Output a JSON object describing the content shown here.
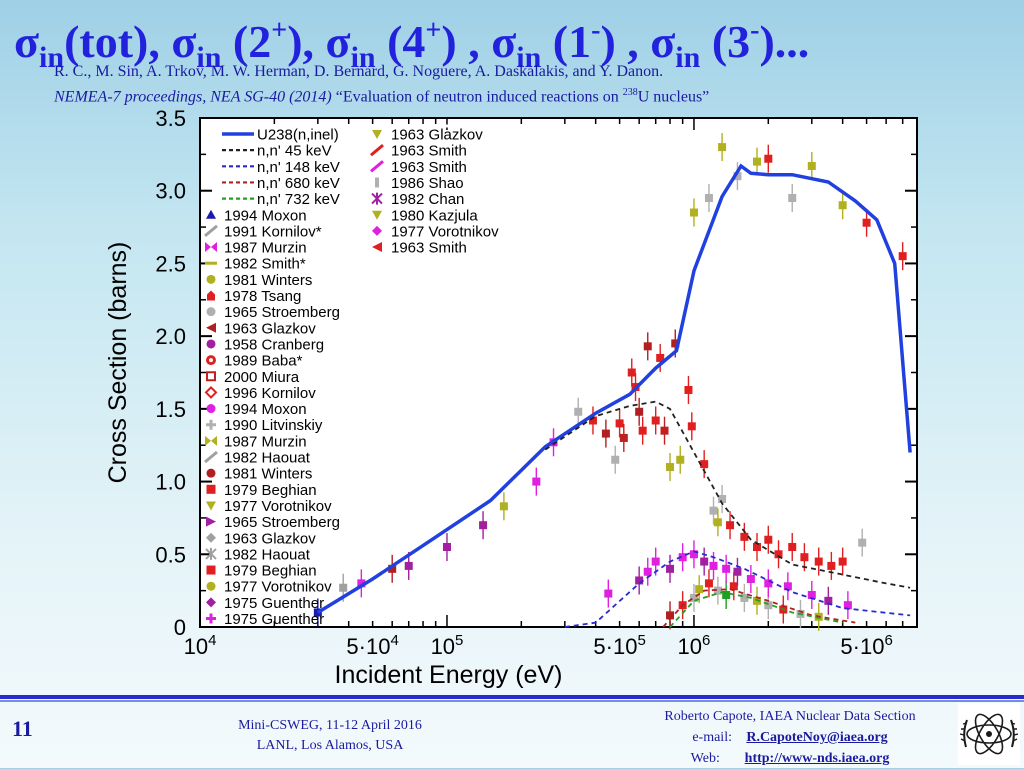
{
  "title": {
    "parts": [
      {
        "sym": "σ",
        "sub": "in",
        "text": "(tot), "
      },
      {
        "sym": "σ",
        "sub": "in",
        "text": " (2",
        "sup": "+",
        "tail": "), "
      },
      {
        "sym": "σ",
        "sub": "in",
        "text": " (4",
        "sup": "+",
        "tail": ") , "
      },
      {
        "sym": "σ",
        "sub": "in",
        "text": " (1",
        "sup": "-",
        "tail": ") , "
      },
      {
        "sym": "σ",
        "sub": "in",
        "text": " (3",
        "sup": "-",
        "tail": ")..."
      }
    ]
  },
  "reference": {
    "authors": "R. C., M. Sin, A. Trkov, M. W. Herman, D. Bernard, G. Noguere, A. Daskalakis, and Y. Danon.",
    "venue": "NEMEA-7 proceedings, NEA SG-40 (2014)",
    "paper_title_pre": " “Evaluation of neutron induced reactions on ",
    "paper_title_sup": "238",
    "paper_title_post": "U nucleus”"
  },
  "footer": {
    "slide_number": "11",
    "event_line1": "Mini-CSWEG, 11-12 April 2016",
    "event_line2": "LANL, Los Alamos, USA",
    "contact_name": "Roberto Capote, IAEA Nuclear Data Section",
    "email_label": "e-mail:",
    "email": "R.CapoteNoy@iaea.org",
    "web_label": "Web:",
    "web": "http://www-nds.iaea.org"
  },
  "chart_data": {
    "type": "line",
    "xscale": "log",
    "xlim": [
      10000,
      8000000
    ],
    "ylim": [
      0,
      3.5
    ],
    "xlabel": "Incident Energy (eV)",
    "ylabel": "Cross Section (barns)",
    "x_ticks": [
      {
        "value": 10000,
        "base": "10",
        "exp": "4",
        "mult": ""
      },
      {
        "value": 50000,
        "base": "10",
        "exp": "4",
        "mult": "5·"
      },
      {
        "value": 100000,
        "base": "10",
        "exp": "5",
        "mult": ""
      },
      {
        "value": 500000,
        "base": "10",
        "exp": "5",
        "mult": "5·"
      },
      {
        "value": 1000000,
        "base": "10",
        "exp": "6",
        "mult": ""
      },
      {
        "value": 5000000,
        "base": "10",
        "exp": "6",
        "mult": "5·"
      }
    ],
    "y_ticks": [
      "0",
      "0.5",
      "1.0",
      "1.5",
      "2.0",
      "2.5",
      "3.0",
      "3.5"
    ],
    "legend_position": "top-left",
    "curves": [
      {
        "name": "U238(n,inel)",
        "color": "#2040e0",
        "style": "solid",
        "x": [
          30000,
          50000,
          80000,
          150000,
          250000,
          400000,
          550000,
          700000,
          850000,
          1000000,
          1300000,
          1550000,
          1700000,
          2000000,
          2500000,
          3500000,
          4500000,
          5500000,
          6500000,
          7500000
        ],
        "y": [
          0.1,
          0.33,
          0.56,
          0.87,
          1.24,
          1.47,
          1.6,
          1.78,
          1.9,
          2.45,
          2.96,
          3.17,
          3.12,
          3.11,
          3.11,
          3.06,
          2.93,
          2.8,
          2.5,
          1.2
        ]
      },
      {
        "name": "n,n'  45 keV",
        "color": "#222222",
        "style": "dashed",
        "x": [
          250000,
          400000,
          550000,
          700000,
          800000,
          1000000,
          1300000,
          1700000,
          2500000,
          4000000,
          6000000,
          7500000
        ],
        "y": [
          1.22,
          1.45,
          1.52,
          1.55,
          1.5,
          1.2,
          0.85,
          0.6,
          0.43,
          0.36,
          0.3,
          0.27
        ]
      },
      {
        "name": "n,n' 148 keV",
        "color": "#2a2ad0",
        "style": "dashed",
        "x": [
          300000,
          400000,
          600000,
          800000,
          1000000,
          1200000,
          1600000,
          2500000,
          4000000,
          7500000
        ],
        "y": [
          0.0,
          0.03,
          0.3,
          0.45,
          0.52,
          0.48,
          0.4,
          0.24,
          0.13,
          0.08
        ]
      },
      {
        "name": "n,n' 680 keV",
        "color": "#b02020",
        "style": "dashed",
        "x": [
          750000,
          900000,
          1100000,
          1400000,
          2000000,
          3000000,
          4500000
        ],
        "y": [
          0.0,
          0.15,
          0.25,
          0.26,
          0.18,
          0.08,
          0.03
        ]
      },
      {
        "name": "n,n' 732 keV",
        "color": "#20a020",
        "style": "dashed",
        "x": [
          800000,
          1000000,
          1300000,
          1700000,
          2500000,
          4000000
        ],
        "y": [
          0.0,
          0.18,
          0.24,
          0.2,
          0.1,
          0.03
        ]
      }
    ],
    "legend_col1": [
      {
        "label": "U238(n,inel)",
        "color": "#2040e0",
        "kind": "solid"
      },
      {
        "label": "n,n'  45 keV",
        "color": "#222222",
        "kind": "dashed"
      },
      {
        "label": "n,n' 148 keV",
        "color": "#2a2ad0",
        "kind": "dashed"
      },
      {
        "label": "n,n' 680 keV",
        "color": "#b02020",
        "kind": "dashed"
      },
      {
        "label": "n,n' 732 keV",
        "color": "#20a020",
        "kind": "dashed"
      },
      {
        "label": "1994 Moxon",
        "color": "#1a1ab0",
        "kind": "triangle"
      },
      {
        "label": "1991 Kornilov*",
        "color": "#a0a0a0",
        "kind": "slash"
      },
      {
        "label": "1987 Murzin",
        "color": "#e020e0",
        "kind": "bowtie"
      },
      {
        "label": "1982 Smith*",
        "color": "#b0b020",
        "kind": "dash"
      },
      {
        "label": "1981 Winters",
        "color": "#b0b020",
        "kind": "circle"
      },
      {
        "label": "1978 Tsang",
        "color": "#e02020",
        "kind": "house"
      },
      {
        "label": "1965 Stroemberg",
        "color": "#b0b0b0",
        "kind": "circle"
      },
      {
        "label": "1963 Glazkov",
        "color": "#b02020",
        "kind": "tri-left"
      },
      {
        "label": "1958 Cranberg",
        "color": "#a020a0",
        "kind": "circle"
      },
      {
        "label": "1989 Baba*",
        "color": "#e02020",
        "kind": "burst"
      },
      {
        "label": "2000 Miura",
        "color": "#c02020",
        "kind": "square-open"
      },
      {
        "label": "1996 Kornilov",
        "color": "#e02020",
        "kind": "diamond-open"
      },
      {
        "label": "1994 Moxon",
        "color": "#e020e0",
        "kind": "circle"
      },
      {
        "label": "1990 Litvinskiy",
        "color": "#b0b0b0",
        "kind": "plus"
      },
      {
        "label": "1987 Murzin",
        "color": "#b0b020",
        "kind": "bowtie"
      },
      {
        "label": "1982 Haouat",
        "color": "#a0a0a0",
        "kind": "slash"
      },
      {
        "label": "1981 Winters",
        "color": "#b02020",
        "kind": "circle"
      },
      {
        "label": "1979 Beghian",
        "color": "#e02020",
        "kind": "square"
      },
      {
        "label": "1977 Vorotnikov",
        "color": "#b0b020",
        "kind": "tri-down"
      },
      {
        "label": "1965 Stroemberg",
        "color": "#a020a0",
        "kind": "tri-right"
      },
      {
        "label": "1963 Glazkov",
        "color": "#a0a0a0",
        "kind": "diamond"
      },
      {
        "label": "1982 Haouat",
        "color": "#a0a0a0",
        "kind": "star"
      },
      {
        "label": "1979 Beghian",
        "color": "#e02020",
        "kind": "square"
      },
      {
        "label": "1977 Vorotnikov",
        "color": "#b0b020",
        "kind": "circle"
      },
      {
        "label": "1975 Guenther",
        "color": "#a020a0",
        "kind": "diamond"
      },
      {
        "label": "1975 Guenther",
        "color": "#e020e0",
        "kind": "plus"
      }
    ],
    "legend_col2": [
      {
        "label": "1963 Glazkov",
        "color": "#b0b020",
        "kind": "tri-down"
      },
      {
        "label": "1963 Smith",
        "color": "#e02020",
        "kind": "slash"
      },
      {
        "label": "1963 Smith",
        "color": "#e020e0",
        "kind": "slash"
      },
      {
        "label": "1986 Shao",
        "color": "#b0b0b0",
        "kind": "bar"
      },
      {
        "label": "1982 Chan",
        "color": "#a020a0",
        "kind": "star"
      },
      {
        "label": "1980 Kazjula",
        "color": "#b0b020",
        "kind": "tri-down"
      },
      {
        "label": "1977 Vorotnikov",
        "color": "#e020e0",
        "kind": "diamond"
      },
      {
        "label": "1963 Smith",
        "color": "#e02020",
        "kind": "tri-left"
      }
    ],
    "points_total": [
      {
        "x": 30000,
        "y": 0.1,
        "c": "#1a1ab0"
      },
      {
        "x": 38000,
        "y": 0.27,
        "c": "#a0a0a0"
      },
      {
        "x": 45000,
        "y": 0.3,
        "c": "#e020e0"
      },
      {
        "x": 60000,
        "y": 0.4,
        "c": "#b02020"
      },
      {
        "x": 70000,
        "y": 0.42,
        "c": "#a020a0"
      },
      {
        "x": 100000,
        "y": 0.55,
        "c": "#a020a0"
      },
      {
        "x": 140000,
        "y": 0.7,
        "c": "#a020a0"
      },
      {
        "x": 170000,
        "y": 0.83,
        "c": "#b0b020"
      },
      {
        "x": 230000,
        "y": 1.0,
        "c": "#e020e0"
      },
      {
        "x": 270000,
        "y": 1.27,
        "c": "#e020e0"
      },
      {
        "x": 340000,
        "y": 1.48,
        "c": "#b0b0b0"
      },
      {
        "x": 390000,
        "y": 1.42,
        "c": "#e02020"
      },
      {
        "x": 440000,
        "y": 1.33,
        "c": "#b02020"
      },
      {
        "x": 480000,
        "y": 1.15,
        "c": "#b0b0b0"
      },
      {
        "x": 500000,
        "y": 1.4,
        "c": "#e02020"
      },
      {
        "x": 520000,
        "y": 1.3,
        "c": "#c02020"
      },
      {
        "x": 560000,
        "y": 1.75,
        "c": "#e02020"
      },
      {
        "x": 580000,
        "y": 1.65,
        "c": "#e02020"
      },
      {
        "x": 600000,
        "y": 1.48,
        "c": "#b02020"
      },
      {
        "x": 620000,
        "y": 1.35,
        "c": "#e02020"
      },
      {
        "x": 650000,
        "y": 1.93,
        "c": "#b02020"
      },
      {
        "x": 700000,
        "y": 1.42,
        "c": "#e02020"
      },
      {
        "x": 730000,
        "y": 1.85,
        "c": "#e02020"
      },
      {
        "x": 760000,
        "y": 1.35,
        "c": "#c02020"
      },
      {
        "x": 800000,
        "y": 1.1,
        "c": "#b0b020"
      },
      {
        "x": 840000,
        "y": 1.95,
        "c": "#b02020"
      },
      {
        "x": 880000,
        "y": 1.15,
        "c": "#b0b020"
      },
      {
        "x": 950000,
        "y": 1.63,
        "c": "#e02020"
      },
      {
        "x": 980000,
        "y": 1.38,
        "c": "#e02020"
      },
      {
        "x": 1000000,
        "y": 2.85,
        "c": "#b0b020"
      },
      {
        "x": 1150000,
        "y": 2.95,
        "c": "#b0b0b0"
      },
      {
        "x": 1300000,
        "y": 3.3,
        "c": "#b0b020"
      },
      {
        "x": 1500000,
        "y": 3.1,
        "c": "#b0b0b0"
      },
      {
        "x": 1800000,
        "y": 3.2,
        "c": "#b0b020"
      },
      {
        "x": 2000000,
        "y": 3.22,
        "c": "#e02020"
      },
      {
        "x": 2500000,
        "y": 2.95,
        "c": "#b0b0b0"
      },
      {
        "x": 3000000,
        "y": 3.17,
        "c": "#b0b020"
      },
      {
        "x": 4000000,
        "y": 2.9,
        "c": "#b0b020"
      },
      {
        "x": 5000000,
        "y": 2.78,
        "c": "#e02020"
      },
      {
        "x": 7000000,
        "y": 2.55,
        "c": "#e02020"
      }
    ],
    "points_45": [
      {
        "x": 1100000,
        "y": 1.12,
        "c": "#e02020"
      },
      {
        "x": 1200000,
        "y": 0.8,
        "c": "#b0b0b0"
      },
      {
        "x": 1250000,
        "y": 0.72,
        "c": "#b0b020"
      },
      {
        "x": 1300000,
        "y": 0.88,
        "c": "#b0b0b0"
      },
      {
        "x": 1400000,
        "y": 0.7,
        "c": "#e02020"
      },
      {
        "x": 1600000,
        "y": 0.62,
        "c": "#e02020"
      },
      {
        "x": 1800000,
        "y": 0.55,
        "c": "#e02020"
      },
      {
        "x": 2000000,
        "y": 0.6,
        "c": "#e02020"
      },
      {
        "x": 2200000,
        "y": 0.5,
        "c": "#e02020"
      },
      {
        "x": 2500000,
        "y": 0.55,
        "c": "#e02020"
      },
      {
        "x": 2800000,
        "y": 0.48,
        "c": "#e02020"
      },
      {
        "x": 3200000,
        "y": 0.45,
        "c": "#e02020"
      },
      {
        "x": 3600000,
        "y": 0.42,
        "c": "#e02020"
      },
      {
        "x": 4000000,
        "y": 0.45,
        "c": "#e02020"
      },
      {
        "x": 4800000,
        "y": 0.58,
        "c": "#b0b0b0"
      }
    ],
    "points_148": [
      {
        "x": 450000,
        "y": 0.23,
        "c": "#e020e0"
      },
      {
        "x": 600000,
        "y": 0.32,
        "c": "#a020a0"
      },
      {
        "x": 650000,
        "y": 0.38,
        "c": "#e020e0"
      },
      {
        "x": 700000,
        "y": 0.45,
        "c": "#e020e0"
      },
      {
        "x": 800000,
        "y": 0.4,
        "c": "#a020a0"
      },
      {
        "x": 900000,
        "y": 0.48,
        "c": "#e020e0"
      },
      {
        "x": 1000000,
        "y": 0.5,
        "c": "#e020e0"
      },
      {
        "x": 1100000,
        "y": 0.45,
        "c": "#a020a0"
      },
      {
        "x": 1200000,
        "y": 0.42,
        "c": "#e020e0"
      },
      {
        "x": 1350000,
        "y": 0.4,
        "c": "#e020e0"
      },
      {
        "x": 1500000,
        "y": 0.38,
        "c": "#a020a0"
      },
      {
        "x": 1700000,
        "y": 0.33,
        "c": "#e020e0"
      },
      {
        "x": 2000000,
        "y": 0.3,
        "c": "#e020e0"
      },
      {
        "x": 2400000,
        "y": 0.28,
        "c": "#e020e0"
      },
      {
        "x": 3000000,
        "y": 0.22,
        "c": "#e020e0"
      },
      {
        "x": 3500000,
        "y": 0.18,
        "c": "#a020a0"
      },
      {
        "x": 4200000,
        "y": 0.15,
        "c": "#e020e0"
      }
    ],
    "points_low": [
      {
        "x": 800000,
        "y": 0.08,
        "c": "#b02020"
      },
      {
        "x": 900000,
        "y": 0.15,
        "c": "#e02020"
      },
      {
        "x": 1000000,
        "y": 0.2,
        "c": "#b0b0b0"
      },
      {
        "x": 1050000,
        "y": 0.26,
        "c": "#b0b020"
      },
      {
        "x": 1150000,
        "y": 0.3,
        "c": "#e02020"
      },
      {
        "x": 1250000,
        "y": 0.25,
        "c": "#b0b0b0"
      },
      {
        "x": 1350000,
        "y": 0.22,
        "c": "#20a020"
      },
      {
        "x": 1450000,
        "y": 0.28,
        "c": "#e02020"
      },
      {
        "x": 1600000,
        "y": 0.2,
        "c": "#b0b0b0"
      },
      {
        "x": 1800000,
        "y": 0.18,
        "c": "#b0b020"
      },
      {
        "x": 2000000,
        "y": 0.15,
        "c": "#b0b0b0"
      },
      {
        "x": 2300000,
        "y": 0.12,
        "c": "#e02020"
      },
      {
        "x": 2700000,
        "y": 0.09,
        "c": "#b0b0b0"
      },
      {
        "x": 3200000,
        "y": 0.07,
        "c": "#b0b020"
      }
    ]
  }
}
